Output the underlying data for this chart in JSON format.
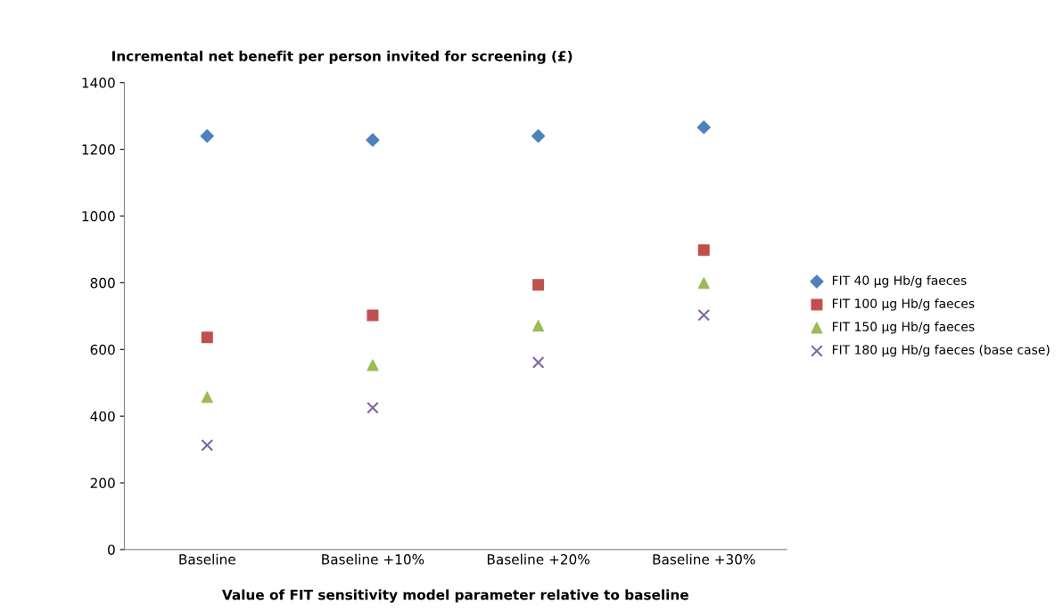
{
  "chart_data": {
    "type": "scatter",
    "ylabel": "Incremental net benefit per person invited for screening (£)",
    "xlabel": "Value of FIT sensitivity model parameter relative to baseline",
    "categories": [
      "Baseline",
      "Baseline +10%",
      "Baseline +20%",
      "Baseline +30%"
    ],
    "series": [
      {
        "name": "FIT 40 µg Hb/g faeces",
        "color": "#4f81bd",
        "marker": "diamond",
        "values": [
          1240,
          1228,
          1240,
          1266
        ]
      },
      {
        "name": "FIT 100 µg Hb/g faeces",
        "color": "#c0504d",
        "marker": "square",
        "values": [
          636,
          702,
          794,
          898
        ]
      },
      {
        "name": "FIT 150 µg Hb/g faeces",
        "color": "#9bbb59",
        "marker": "triangle",
        "values": [
          457,
          553,
          671,
          799
        ]
      },
      {
        "name": "FIT 180 µg Hb/g faeces (base case)",
        "color": "#8064a2",
        "marker": "cross",
        "values": [
          313,
          425,
          561,
          703
        ]
      }
    ],
    "ylim": [
      0,
      1400
    ],
    "yticks": [
      0,
      200,
      400,
      600,
      800,
      1000,
      1200,
      1400
    ],
    "grid": false,
    "legend": "right"
  }
}
